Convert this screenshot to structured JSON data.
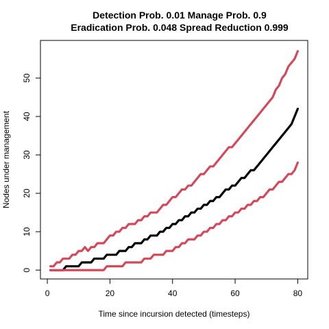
{
  "chart_data": {
    "type": "line",
    "title_line1": "Detection Prob. 0.01 Manage Prob. 0.9",
    "title_line2": "Eradication Prob. 0.048 Spread Reduction 0.999",
    "xlabel": "Time since incursion detected (timesteps)",
    "ylabel": "Nodes under management",
    "xlim": [
      -2.2,
      83.2
    ],
    "ylim": [
      -2.3,
      59.8
    ],
    "xticks": [
      0,
      20,
      40,
      60,
      80
    ],
    "yticks": [
      0,
      10,
      20,
      30,
      40,
      50
    ],
    "grid": false,
    "x": [
      1,
      2,
      3,
      4,
      5,
      6,
      7,
      8,
      9,
      10,
      11,
      12,
      13,
      14,
      15,
      16,
      17,
      18,
      19,
      20,
      21,
      22,
      23,
      24,
      25,
      26,
      27,
      28,
      29,
      30,
      31,
      32,
      33,
      34,
      35,
      36,
      37,
      38,
      39,
      40,
      41,
      42,
      43,
      44,
      45,
      46,
      47,
      48,
      49,
      50,
      51,
      52,
      53,
      54,
      55,
      56,
      57,
      58,
      59,
      60,
      61,
      62,
      63,
      64,
      65,
      66,
      67,
      68,
      69,
      70,
      71,
      72,
      73,
      74,
      75,
      76,
      77,
      78,
      79,
      80
    ],
    "series": [
      {
        "color": "#D1495B",
        "values": [
          1,
          1,
          2,
          2,
          3,
          3,
          3,
          4,
          4,
          5,
          5,
          6,
          5,
          6,
          6,
          7,
          7,
          7,
          8,
          9,
          9,
          10,
          10,
          11,
          11,
          12,
          12,
          12,
          13,
          13,
          14,
          14,
          15,
          15,
          15,
          16,
          17,
          17,
          18,
          19,
          19,
          20,
          21,
          21,
          22,
          22,
          23,
          24,
          25,
          25,
          26,
          27,
          27,
          28,
          29,
          30,
          31,
          32,
          32,
          33,
          34,
          35,
          36,
          37,
          38,
          39,
          40,
          41,
          42,
          43,
          44,
          45,
          47,
          48,
          50,
          51,
          53,
          54,
          55,
          57
        ]
      },
      {
        "color": "#000000",
        "values": [
          0,
          0,
          0,
          0,
          0,
          1,
          1,
          1,
          1,
          1,
          2,
          2,
          2,
          2,
          3,
          3,
          3,
          3,
          4,
          4,
          4,
          4,
          5,
          5,
          5,
          6,
          6,
          7,
          7,
          7,
          8,
          8,
          9,
          9,
          9,
          10,
          10,
          11,
          11,
          12,
          12,
          13,
          13,
          14,
          14,
          15,
          15,
          16,
          16,
          17,
          17,
          18,
          18,
          19,
          19,
          20,
          21,
          21,
          22,
          22,
          23,
          24,
          24,
          25,
          26,
          26,
          27,
          28,
          29,
          30,
          31,
          32,
          33,
          34,
          35,
          36,
          37,
          38,
          40,
          42
        ]
      },
      {
        "color": "#D1495B",
        "values": [
          0,
          0,
          0,
          0,
          0,
          0,
          0,
          0,
          0,
          0,
          0,
          0,
          0,
          0,
          0,
          0,
          0,
          0,
          1,
          1,
          1,
          1,
          1,
          1,
          2,
          2,
          2,
          2,
          2,
          2,
          3,
          3,
          3,
          4,
          4,
          4,
          4,
          5,
          5,
          5,
          6,
          6,
          7,
          7,
          8,
          8,
          8,
          9,
          9,
          10,
          10,
          11,
          11,
          12,
          12,
          13,
          13,
          14,
          14,
          15,
          15,
          16,
          16,
          17,
          17,
          18,
          18,
          19,
          19,
          20,
          21,
          21,
          22,
          23,
          23,
          24,
          25,
          25,
          26,
          28
        ]
      }
    ]
  }
}
